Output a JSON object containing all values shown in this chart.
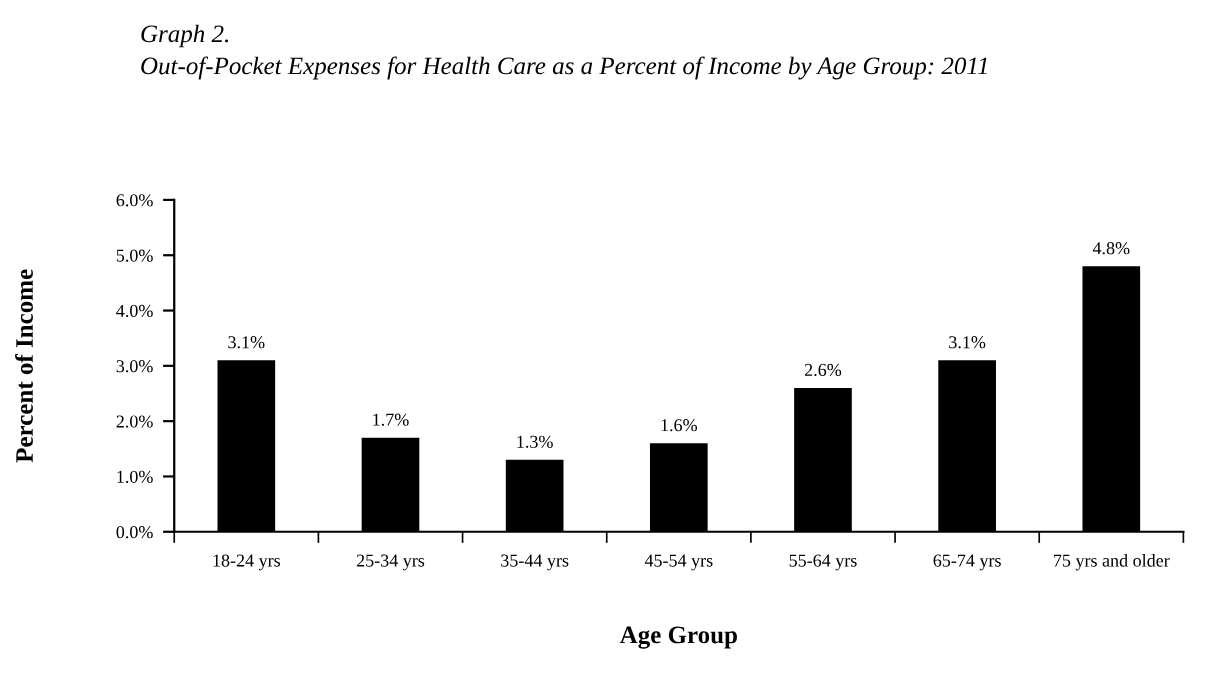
{
  "chart_data": {
    "type": "bar",
    "title": "Graph 2.",
    "subtitle": "Out-of-Pocket Expenses for Health Care as a Percent of Income by Age Group: 2011",
    "xlabel": "Age Group",
    "ylabel": "Percent of Income",
    "categories": [
      "18-24 yrs",
      "25-34 yrs",
      "35-44 yrs",
      "45-54 yrs",
      "55-64 yrs",
      "65-74 yrs",
      "75 yrs and older"
    ],
    "values": [
      3.1,
      1.7,
      1.3,
      1.6,
      2.6,
      3.1,
      4.8
    ],
    "value_labels": [
      "3.1%",
      "1.7%",
      "1.3%",
      "1.6%",
      "2.6%",
      "3.1%",
      "4.8%"
    ],
    "color": "#000000",
    "ylim": [
      0,
      6
    ],
    "yticks": [
      {
        "value": 0,
        "label": "0.0%"
      },
      {
        "value": 1,
        "label": "1.0%"
      },
      {
        "value": 2,
        "label": "2.0%"
      },
      {
        "value": 3,
        "label": "3.0%"
      },
      {
        "value": 4,
        "label": "4.0%"
      },
      {
        "value": 5,
        "label": "5.0%"
      },
      {
        "value": 6,
        "label": "6.0%"
      }
    ],
    "grid": false,
    "legend": false
  }
}
